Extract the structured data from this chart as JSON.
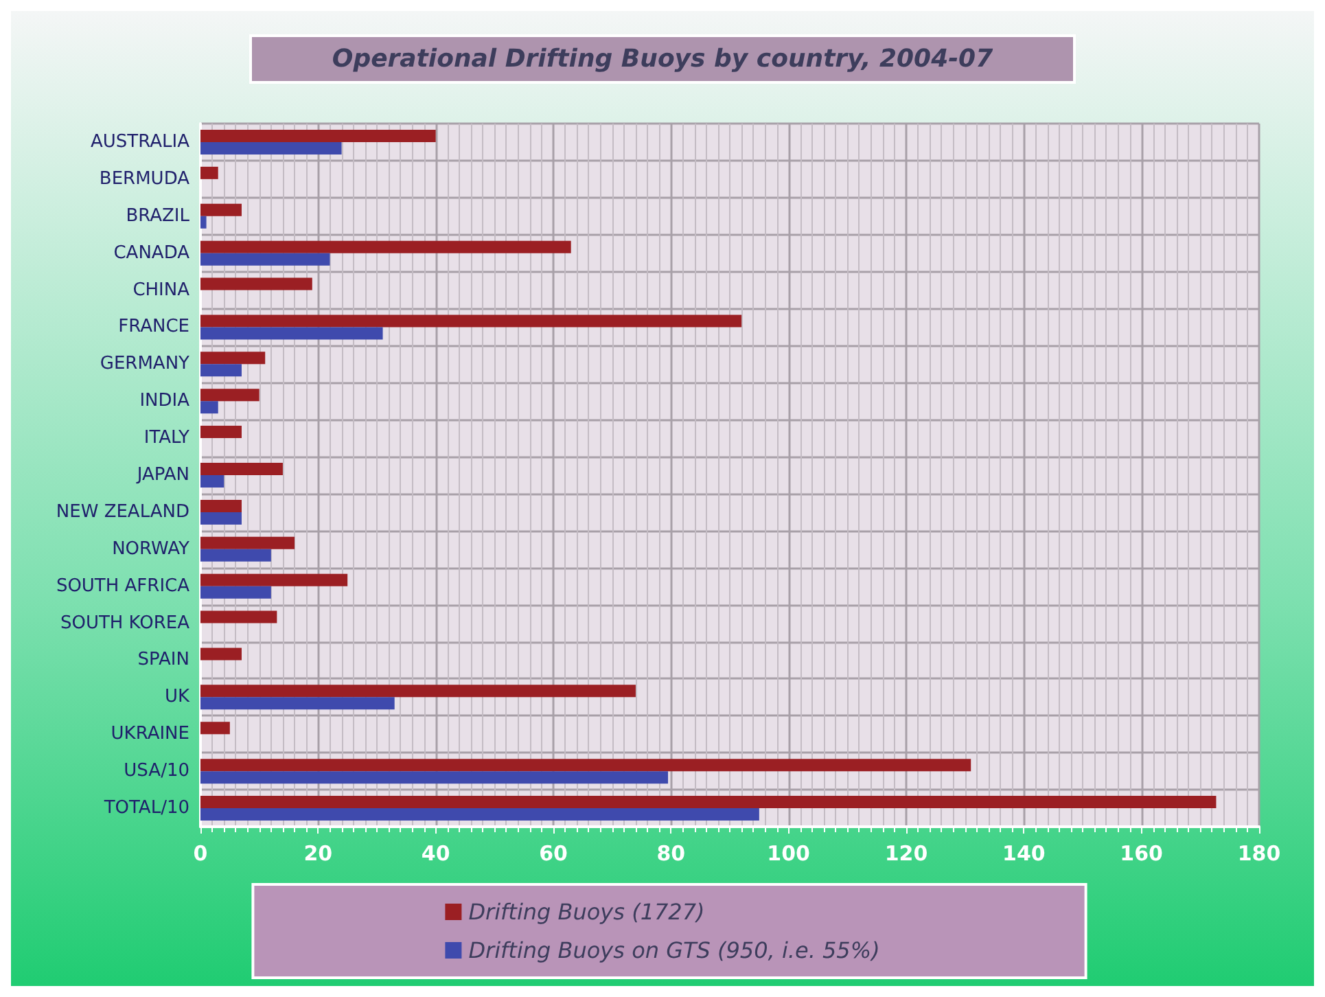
{
  "chart_data": {
    "type": "bar",
    "orientation": "horizontal",
    "title": "Operational Drifting Buoys by country, 2004-07",
    "categories": [
      "AUSTRALIA",
      "BERMUDA",
      "BRAZIL",
      "CANADA",
      "CHINA",
      "FRANCE",
      "GERMANY",
      "INDIA",
      "ITALY",
      "JAPAN",
      "NEW ZEALAND",
      "NORWAY",
      "SOUTH AFRICA",
      "SOUTH KOREA",
      "SPAIN",
      "UK",
      "UKRAINE",
      "USA/10",
      "TOTAL/10"
    ],
    "series": [
      {
        "name": "Drifting Buoys (1727)",
        "color": "#9b1f23",
        "values": [
          40,
          3,
          7,
          63,
          19,
          92,
          11,
          10,
          7,
          14,
          7,
          16,
          25,
          13,
          7,
          74,
          5,
          131,
          172.7
        ]
      },
      {
        "name": "Drifting Buoys on GTS (950, i.e. 55%)",
        "color": "#3f4aad",
        "values": [
          24,
          null,
          1,
          22,
          null,
          31,
          7,
          3,
          null,
          4,
          7,
          12,
          12,
          null,
          null,
          33,
          null,
          79.5,
          95
        ]
      }
    ],
    "xlim": [
      0,
      180
    ],
    "xticks": [
      0,
      20,
      40,
      60,
      80,
      100,
      120,
      140,
      160,
      180
    ],
    "grid": true,
    "legend": "bottom"
  }
}
